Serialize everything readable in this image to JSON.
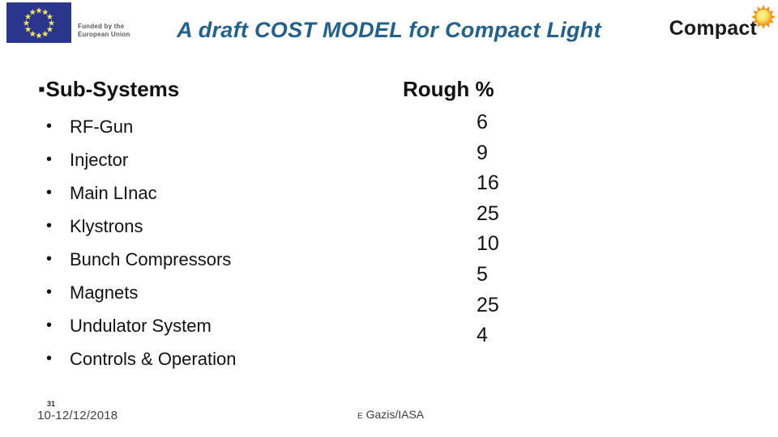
{
  "header": {
    "eu_caption_line1": "Funded by the",
    "eu_caption_line2": "European Union",
    "title": "A draft COST MODEL for Compact Light",
    "compact_logo_text": "Compact"
  },
  "content": {
    "bullet_char": "▪",
    "dot_char": "•",
    "subsystems_heading": "Sub-Systems",
    "rough_heading": "Rough %",
    "items": [
      {
        "label": "RF-Gun",
        "rough_percent": "6"
      },
      {
        "label": "Injector",
        "rough_percent": "9"
      },
      {
        "label": "Main LInac",
        "rough_percent": "16"
      },
      {
        "label": "Klystrons",
        "rough_percent": "25"
      },
      {
        "label": "Bunch Compressors",
        "rough_percent": "10"
      },
      {
        "label": "Magnets",
        "rough_percent": "5"
      },
      {
        "label": "Undulator System",
        "rough_percent": "25"
      },
      {
        "label": "Controls & Operation",
        "rough_percent": "4"
      }
    ]
  },
  "footer": {
    "slide_number": "31",
    "date": "10-12/12/2018",
    "author_prefix": "E",
    "author_name": "Gazis/IASA"
  },
  "colors": {
    "title_blue": "#20618E",
    "flag_blue": "#2A358C",
    "star_yellow": "#F0E264",
    "sun_orange": "#F7941D",
    "sun_core": "#FFE766",
    "text_black": "#121212"
  }
}
